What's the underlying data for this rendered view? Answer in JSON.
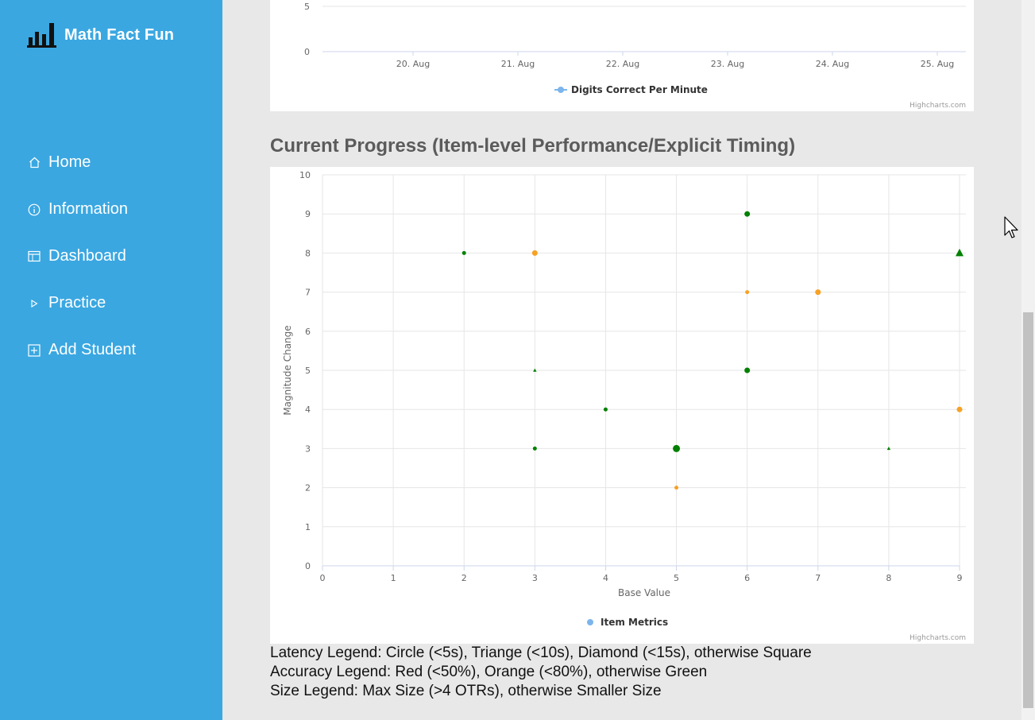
{
  "app": {
    "brand_title": "Math Fact Fun",
    "brand_icon": "bar-chart-logo-icon"
  },
  "sidebar": {
    "items": [
      {
        "label": "Home",
        "icon": "home-icon"
      },
      {
        "label": "Information",
        "icon": "info-icon"
      },
      {
        "label": "Dashboard",
        "icon": "calendar-icon"
      },
      {
        "label": "Practice",
        "icon": "play-icon"
      },
      {
        "label": "Add Student",
        "icon": "plus-square-icon"
      }
    ]
  },
  "top_chart": {
    "y_ticks": [
      "5",
      "0"
    ],
    "x_ticks": [
      "20. Aug",
      "21. Aug",
      "22. Aug",
      "23. Aug",
      "24. Aug",
      "25. Aug"
    ],
    "legend_label": "Digits Correct Per Minute",
    "credits": "Highcharts.com"
  },
  "section": {
    "title": "Current Progress (Item-level Performance/Explicit Timing)"
  },
  "chart_data": {
    "type": "scatter",
    "xlabel": "Base Value",
    "ylabel": "Magnitude Change",
    "xlim": [
      0,
      9
    ],
    "ylim": [
      0,
      10
    ],
    "x_ticks": [
      "0",
      "1",
      "2",
      "3",
      "4",
      "5",
      "6",
      "7",
      "8",
      "9"
    ],
    "y_ticks": [
      "0",
      "1",
      "2",
      "3",
      "4",
      "5",
      "6",
      "7",
      "8",
      "9",
      "10"
    ],
    "grid": true,
    "legend": "bottom-center",
    "series": [
      {
        "name": "Item Metrics",
        "legend_color": "#7cb5ec",
        "points": [
          {
            "x": 2,
            "y": 8,
            "color": "#008000",
            "shape": "circle",
            "size": "small"
          },
          {
            "x": 3,
            "y": 8,
            "color": "#f7a125",
            "shape": "circle",
            "size": "medium"
          },
          {
            "x": 3,
            "y": 5,
            "color": "#008000",
            "shape": "triangle",
            "size": "small"
          },
          {
            "x": 3,
            "y": 3,
            "color": "#008000",
            "shape": "circle",
            "size": "small"
          },
          {
            "x": 4,
            "y": 4,
            "color": "#008000",
            "shape": "circle",
            "size": "small"
          },
          {
            "x": 5,
            "y": 3,
            "color": "#008000",
            "shape": "circle",
            "size": "large"
          },
          {
            "x": 5,
            "y": 2,
            "color": "#f7a125",
            "shape": "circle",
            "size": "small"
          },
          {
            "x": 6,
            "y": 9,
            "color": "#008000",
            "shape": "circle",
            "size": "medium"
          },
          {
            "x": 6,
            "y": 7,
            "color": "#f7a125",
            "shape": "circle",
            "size": "small"
          },
          {
            "x": 6,
            "y": 5,
            "color": "#008000",
            "shape": "circle",
            "size": "medium"
          },
          {
            "x": 7,
            "y": 7,
            "color": "#f7a125",
            "shape": "circle",
            "size": "medium"
          },
          {
            "x": 8,
            "y": 3,
            "color": "#008000",
            "shape": "triangle",
            "size": "small"
          },
          {
            "x": 9,
            "y": 8,
            "color": "#008000",
            "shape": "triangle",
            "size": "large"
          },
          {
            "x": 9,
            "y": 4,
            "color": "#f7a125",
            "shape": "circle",
            "size": "medium"
          }
        ]
      }
    ],
    "credits": "Highcharts.com"
  },
  "legends": {
    "latency": "Latency Legend: Circle (<5s), Triange (<10s), Diamond (<15s), otherwise Square",
    "accuracy": "Accuracy Legend: Red (<50%), Orange (<80%), otherwise Green",
    "size": "Size Legend: Max Size (>4 OTRs), otherwise Smaller Size"
  },
  "colors": {
    "sidebar_bg": "#3aa7e1",
    "page_bg": "#e8e8e8",
    "green": "#008000",
    "orange": "#f7a125",
    "series_blue": "#7cb5ec"
  }
}
